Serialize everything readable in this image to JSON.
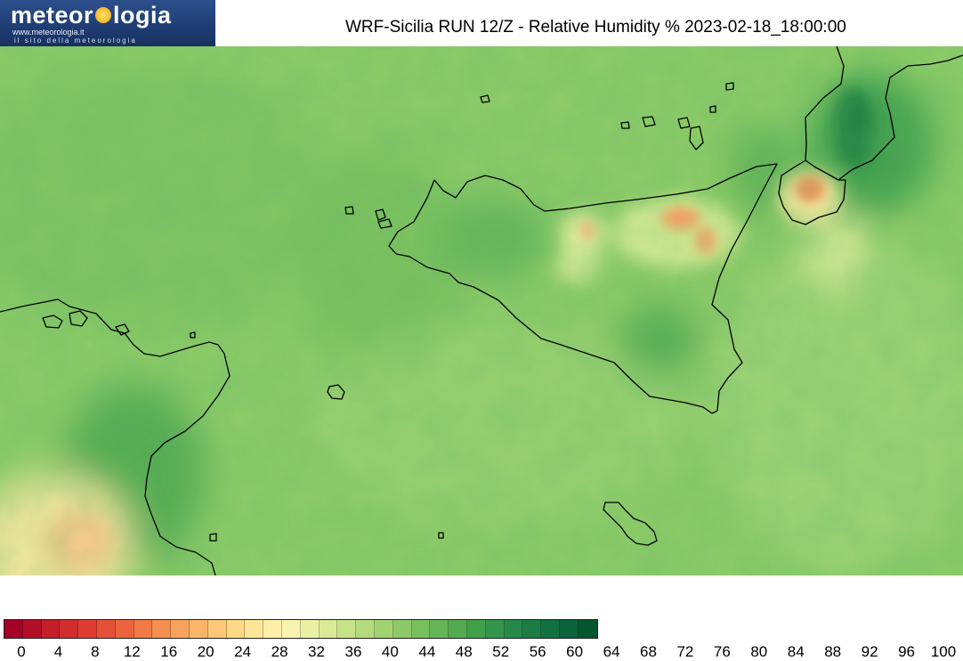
{
  "logo": {
    "brand_left": "meteor",
    "brand_right": "logia",
    "url": "www.meteorologia.it",
    "tagline": "il sito della meteorologia"
  },
  "title": "WRF-Sicilia RUN 12/Z - Relative Humidity % 2023-02-18_18:00:00",
  "legend": {
    "ticks": [
      "0",
      "4",
      "8",
      "12",
      "16",
      "20",
      "24",
      "28",
      "32",
      "36",
      "40",
      "44",
      "48",
      "52",
      "56",
      "60",
      "64",
      "68",
      "72",
      "76",
      "80",
      "84",
      "88",
      "92",
      "96",
      "100"
    ],
    "colors": [
      "#a50026",
      "#b40f28",
      "#c41e2b",
      "#d22d2f",
      "#dd3d32",
      "#e55137",
      "#ec643d",
      "#f27a46",
      "#f58f51",
      "#f8a25c",
      "#fab668",
      "#fcc777",
      "#fdd886",
      "#fde597",
      "#fef0a8",
      "#f8f4b0",
      "#eaf1a4",
      "#d9eb96",
      "#c7e389",
      "#b4db7d",
      "#a1d372",
      "#8dc968",
      "#78bf5e",
      "#65b557",
      "#53aa50",
      "#41a04a",
      "#33954a",
      "#278948",
      "#1c7d44",
      "#137040",
      "#0a633a",
      "#04562f"
    ],
    "min": 0,
    "max": 100,
    "step": 4
  }
}
